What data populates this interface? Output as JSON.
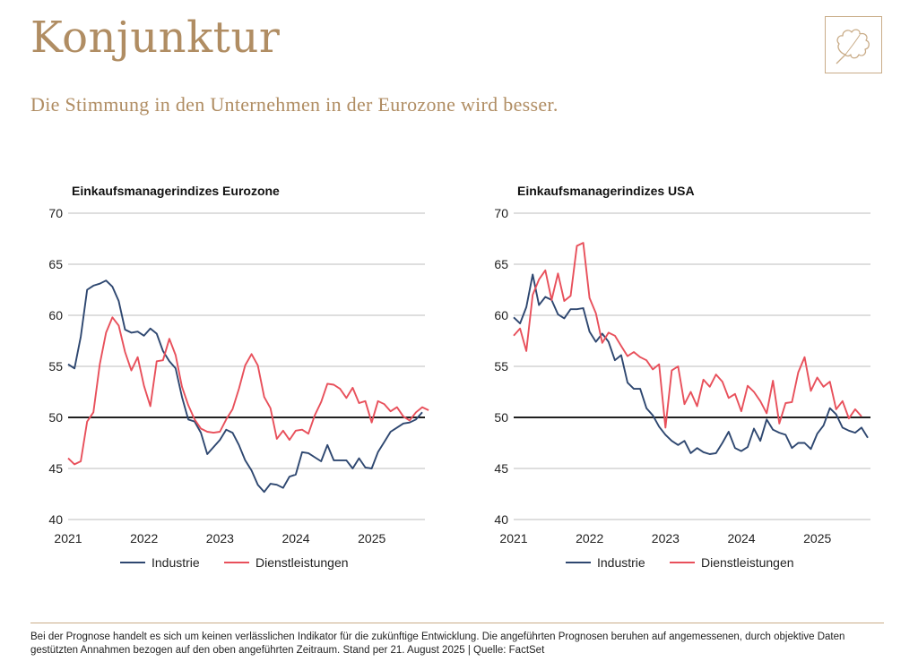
{
  "page": {
    "title": "Konjunktur",
    "subtitle": "Die Stimmung in den Unternehmen in der Eurozone wird besser.",
    "footer": "Bei der Prognose handelt es sich um keinen verlässlichen Indikator für die zukünftige Entwicklung. Die angeführten Prognosen beruhen auf angemessenen, durch objektive Daten gestützten Annahmen bezogen auf den oben angeführten Zeitraum. Stand per 21. August 2025 | Quelle: FactSet"
  },
  "colors": {
    "accent": "#b08d63",
    "industrie": "#2e4770",
    "dienstleistungen": "#e8505b",
    "grid": "#bdbdbd",
    "reference": "#000000"
  },
  "logo": {
    "icon": "oak-leaf-icon"
  },
  "chart_data": [
    {
      "type": "line",
      "title": "Einkaufsmanagerindizes Eurozone",
      "xlabel": "",
      "ylabel": "",
      "ylim": [
        40,
        70
      ],
      "yticks": [
        40,
        45,
        50,
        55,
        60,
        65,
        70
      ],
      "x_start": 2021.0,
      "x_step": 0.0833,
      "xlim": [
        2021.0,
        2025.7
      ],
      "xtick_labels": [
        "2021",
        "2022",
        "2023",
        "2024",
        "2025"
      ],
      "xtick_values": [
        2021,
        2022,
        2023,
        2024,
        2025
      ],
      "reference_line": 50,
      "legend": "bottom",
      "series": [
        {
          "name": "Industrie",
          "color": "#2e4770",
          "values": [
            55.2,
            54.8,
            57.9,
            62.5,
            62.9,
            63.1,
            63.4,
            62.8,
            61.4,
            58.6,
            58.3,
            58.4,
            58.0,
            58.7,
            58.2,
            56.5,
            55.5,
            54.8,
            52.0,
            49.8,
            49.6,
            48.5,
            46.4,
            47.1,
            47.8,
            48.8,
            48.5,
            47.3,
            45.8,
            44.8,
            43.4,
            42.7,
            43.5,
            43.4,
            43.1,
            44.2,
            44.4,
            46.6,
            46.5,
            46.1,
            45.7,
            47.3,
            45.8,
            45.8,
            45.8,
            45.0,
            46.0,
            45.1,
            45.0,
            46.6,
            47.6,
            48.6,
            49.0,
            49.4,
            49.5,
            49.8,
            50.5
          ]
        },
        {
          "name": "Dienstleistungen",
          "color": "#e8505b",
          "values": [
            46.0,
            45.4,
            45.7,
            49.6,
            50.5,
            55.2,
            58.3,
            59.8,
            59.0,
            56.4,
            54.6,
            55.9,
            53.1,
            51.1,
            55.5,
            55.6,
            57.7,
            56.1,
            53.0,
            51.2,
            49.8,
            48.9,
            48.6,
            48.5,
            48.6,
            49.8,
            50.8,
            52.8,
            55.1,
            56.2,
            55.1,
            52.0,
            50.9,
            47.9,
            48.7,
            47.8,
            48.7,
            48.8,
            48.4,
            50.2,
            51.5,
            53.3,
            53.2,
            52.8,
            51.9,
            52.9,
            51.4,
            51.6,
            49.5,
            51.6,
            51.3,
            50.6,
            51.0,
            50.1,
            49.7,
            50.5,
            51.0,
            50.7
          ]
        }
      ]
    },
    {
      "type": "line",
      "title": "Einkaufsmanagerindizes USA",
      "xlabel": "",
      "ylabel": "",
      "ylim": [
        40,
        70
      ],
      "yticks": [
        40,
        45,
        50,
        55,
        60,
        65,
        70
      ],
      "x_start": 2021.0,
      "x_step": 0.0833,
      "xlim": [
        2021.0,
        2025.7
      ],
      "xtick_labels": [
        "2021",
        "2022",
        "2023",
        "2024",
        "2025"
      ],
      "xtick_values": [
        2021,
        2022,
        2023,
        2024,
        2025
      ],
      "reference_line": 50,
      "legend": "bottom",
      "series": [
        {
          "name": "Industrie",
          "color": "#2e4770",
          "values": [
            59.8,
            59.2,
            60.8,
            64.0,
            61.0,
            61.8,
            61.5,
            60.1,
            59.7,
            60.6,
            60.6,
            60.7,
            58.4,
            57.4,
            58.2,
            57.4,
            55.6,
            56.1,
            53.4,
            52.8,
            52.8,
            50.9,
            50.2,
            49.1,
            48.3,
            47.7,
            47.3,
            47.7,
            46.5,
            47.0,
            46.6,
            46.4,
            46.5,
            47.5,
            48.6,
            47.0,
            46.7,
            47.1,
            48.9,
            47.7,
            49.8,
            48.8,
            48.5,
            48.3,
            47.0,
            47.5,
            47.5,
            46.9,
            48.4,
            49.2,
            50.9,
            50.3,
            49.0,
            48.7,
            48.5,
            49.0,
            48.0
          ]
        },
        {
          "name": "Dienstleistungen",
          "color": "#e8505b",
          "values": [
            58.0,
            58.7,
            56.5,
            62.0,
            63.5,
            64.4,
            61.5,
            64.1,
            61.4,
            61.9,
            66.8,
            67.1,
            61.7,
            60.2,
            57.3,
            58.3,
            58.0,
            57.0,
            56.0,
            56.4,
            55.9,
            55.6,
            54.7,
            55.2,
            49.0,
            54.6,
            55.0,
            51.3,
            52.5,
            51.1,
            53.7,
            53.0,
            54.2,
            53.5,
            51.9,
            52.3,
            50.6,
            53.1,
            52.5,
            51.6,
            50.4,
            53.6,
            49.4,
            51.4,
            51.5,
            54.4,
            55.9,
            52.6,
            53.9,
            53.0,
            53.5,
            50.8,
            51.6,
            49.9,
            50.8,
            50.1
          ]
        }
      ]
    }
  ]
}
